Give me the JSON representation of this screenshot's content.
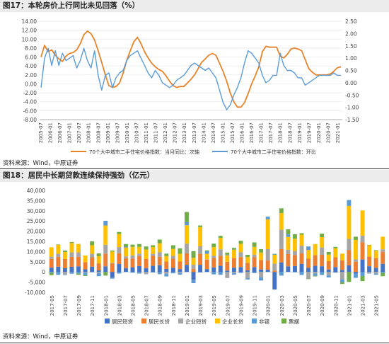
{
  "figure1": {
    "title": "图17：本轮房价上行同比未见回落（%）",
    "source": "资料来源：Wind，中原证券"
  },
  "figure2": {
    "title": "图18：居民中长期贷款连续保持强劲（亿元）",
    "source": "资料来源：Wind，中原证券"
  },
  "chart_data": [
    {
      "type": "line",
      "title": "本轮房价上行同比未见回落（%）",
      "x_labels": [
        "2005-07",
        "2006-01",
        "2006-07",
        "2007-01",
        "2007-07",
        "2008-01",
        "2008-07",
        "2009-01",
        "2009-07",
        "2010-01",
        "2010-07",
        "2011-01",
        "2011-07",
        "2012-01",
        "2012-07",
        "2013-01",
        "2013-07",
        "2014-01",
        "2014-07",
        "2015-01",
        "2015-07",
        "2016-01",
        "2016-07",
        "2017-01",
        "2017-07",
        "2018-01",
        "2018-07",
        "2019-01",
        "2019-07",
        "2020-01",
        "2020-07",
        "2021-01"
      ],
      "y_left": {
        "min": -8,
        "max": 14,
        "step": 2
      },
      "y_right": {
        "min": -1.5,
        "max": 2.5,
        "step": 0.5
      },
      "legend_position": "bottom",
      "series": [
        {
          "name": "70个大中城市二手住宅价格指数：当月同比：次轴",
          "color": "#E8832A",
          "axis": "left",
          "values": [
            6.0,
            8.6,
            7.2,
            7.6,
            6.4,
            5.6,
            5.0,
            6.2,
            6.8,
            7.0,
            7.6,
            9.0,
            11.0,
            11.8,
            11.2,
            9.8,
            7.4,
            4.8,
            2.0,
            -0.4,
            -0.8,
            -0.6,
            0.2,
            2.4,
            5.2,
            7.4,
            9.4,
            10.4,
            9.0,
            7.2,
            5.8,
            4.6,
            3.8,
            3.2,
            2.8,
            1.8,
            0.6,
            -0.4,
            -0.8,
            -0.6,
            -0.6,
            0.2,
            1.0,
            2.0,
            3.4,
            4.8,
            5.6,
            6.4,
            6.8,
            6.4,
            4.6,
            2.8,
            0.6,
            -2.0,
            -4.0,
            -5.2,
            -5.2,
            -4.2,
            -2.2,
            0.0,
            1.8,
            3.8,
            7.2,
            8.4,
            8.2,
            8.2,
            8.2,
            6.2,
            5.8,
            6.6,
            7.8,
            8.0,
            7.8,
            7.4,
            5.4,
            3.4,
            2.6,
            2.0,
            2.0,
            2.0,
            2.0,
            2.2,
            2.8,
            3.6,
            3.8
          ]
        },
        {
          "name": "70个大中城市二手住宅价格指数：环比",
          "color": "#5B9BD5",
          "axis": "right",
          "values": [
            -0.2,
            1.0,
            1.4,
            0.7,
            1.3,
            0.7,
            1.2,
            0.9,
            1.0,
            1.1,
            0.6,
            0.9,
            1.4,
            0.9,
            0.6,
            1.3,
            0.3,
            -0.3,
            0.3,
            0.4,
            -0.2,
            0.2,
            0.4,
            0.5,
            0.9,
            1.1,
            1.2,
            1.3,
            1.0,
            0.7,
            0.4,
            0.2,
            0.5,
            0.3,
            0.0,
            -0.1,
            -0.2,
            -0.1,
            0.1,
            0.2,
            0.3,
            0.5,
            0.7,
            0.8,
            0.7,
            0.6,
            0.5,
            0.6,
            0.4,
            0.2,
            -0.3,
            -0.8,
            -1.1,
            -0.9,
            -0.5,
            -0.2,
            0.2,
            0.8,
            1.3,
            1.2,
            1.0,
            0.8,
            0.3,
            0.0,
            0.1,
            0.3,
            0.3,
            1.2,
            0.7,
            0.5,
            0.5,
            0.4,
            0.2,
            0.2,
            -0.1,
            0.0,
            0.1,
            0.2,
            0.3,
            0.3,
            0.3,
            0.3,
            0.4,
            0.3,
            0.3
          ]
        }
      ]
    },
    {
      "type": "bar",
      "stacked": true,
      "title": "居民中长期贷款连续保持强劲（亿元）",
      "categories": [
        "2017-05",
        "2017-06",
        "2017-07",
        "2017-08",
        "2017-09",
        "2017-10",
        "2017-11",
        "2017-12",
        "2018-01",
        "2018-02",
        "2018-03",
        "2018-04",
        "2018-05",
        "2018-06",
        "2018-07",
        "2018-08",
        "2018-09",
        "2018-10",
        "2018-11",
        "2018-12",
        "2019-01",
        "2019-02",
        "2019-03",
        "2019-04",
        "2019-05",
        "2019-06",
        "2019-07",
        "2019-08",
        "2019-09",
        "2019-10",
        "2019-11",
        "2019-12",
        "2020-01",
        "2020-02",
        "2020-03",
        "2020-04",
        "2020-05",
        "2020-06",
        "2020-07",
        "2020-08",
        "2020-09",
        "2020-10",
        "2020-11",
        "2020-12",
        "2021-01",
        "2021-02",
        "2021-03",
        "2021-04",
        "2021-05",
        "2021-06"
      ],
      "x_labels": [
        "2017-05",
        "2017-07",
        "2017-09",
        "2017-11",
        "2018-01",
        "2018-03",
        "2018-05",
        "2018-07",
        "2018-09",
        "2018-11",
        "2019-01",
        "2019-03",
        "2019-05",
        "2019-07",
        "2019-09",
        "2019-11",
        "2020-01",
        "2020-03",
        "2020-05",
        "2020-07",
        "2020-09",
        "2020-11",
        "2021-01",
        "2021-03",
        "2021-05"
      ],
      "ylim": [
        -10000,
        40000
      ],
      "y_ticks": [
        -10000,
        -5000,
        0,
        5000,
        10000,
        15000,
        20000,
        25000,
        30000,
        35000,
        40000
      ],
      "legend_position": "bottom",
      "series": [
        {
          "name": "居民短贷",
          "color": "#4472C4",
          "values": [
            2100,
            2600,
            1800,
            2500,
            2700,
            1300,
            2600,
            800,
            2700,
            -2800,
            3900,
            1900,
            2300,
            2900,
            1900,
            3000,
            3300,
            1500,
            2000,
            1400,
            3500,
            -3800,
            3500,
            1400,
            2200,
            3000,
            700,
            2100,
            2400,
            800,
            2400,
            1200,
            1100,
            -8600,
            4700,
            2700,
            2900,
            4000,
            2000,
            3000,
            2800,
            1200,
            2400,
            1000,
            3200,
            -900,
            6100,
            2800,
            2000,
            4000
          ]
        },
        {
          "name": "居民长贷",
          "color": "#ED7D31",
          "values": [
            4300,
            4800,
            4600,
            4900,
            4700,
            3500,
            4600,
            3400,
            6300,
            4200,
            5300,
            4800,
            4300,
            4900,
            4500,
            4900,
            4100,
            3600,
            4500,
            3700,
            5600,
            1500,
            5400,
            4600,
            4600,
            4900,
            4300,
            4700,
            4900,
            3700,
            4800,
            4700,
            4500,
            700,
            6500,
            6100,
            5400,
            5100,
            4500,
            5200,
            5600,
            4100,
            4800,
            4700,
            7600,
            5000,
            8400,
            4700,
            4700,
            5900
          ]
        },
        {
          "name": "企业短贷",
          "color": "#A5A5A5",
          "values": [
            1100,
            1500,
            -1300,
            2200,
            2200,
            -300,
            1700,
            -500,
            4300,
            300,
            3000,
            900,
            1500,
            1200,
            -900,
            1000,
            2300,
            -1000,
            1400,
            -500,
            4800,
            2000,
            3700,
            200,
            1100,
            3200,
            -3000,
            -600,
            2400,
            -3000,
            1300,
            -2600,
            5600,
            3400,
            9500,
            2100,
            2000,
            3800,
            -3200,
            -800,
            3600,
            -1700,
            -100,
            -3700,
            5400,
            1200,
            3300,
            -500,
            -800,
            1200
          ]
        },
        {
          "name": "企业长贷",
          "color": "#FFC000",
          "values": [
            4600,
            4400,
            3400,
            4600,
            4100,
            3300,
            4200,
            3500,
            9500,
            5500,
            6400,
            4400,
            4200,
            3300,
            4600,
            3300,
            4400,
            2700,
            3400,
            3800,
            9000,
            3400,
            9400,
            2700,
            4300,
            5600,
            3200,
            4100,
            4100,
            2800,
            3800,
            3600,
            14600,
            4300,
            8200,
            6300,
            6000,
            5400,
            4300,
            5500,
            5100,
            3200,
            4400,
            3300,
            16200,
            9500,
            12400,
            5600,
            3700,
            6200
          ]
        },
        {
          "name": "非银",
          "color": "#5B9BD5",
          "values": [
            -300,
            -1400,
            -200,
            -900,
            -800,
            -1300,
            -200,
            -1600,
            2300,
            -500,
            -800,
            400,
            -400,
            -800,
            -200,
            -300,
            -1100,
            -1200,
            -700,
            -800,
            1500,
            -1700,
            -300,
            1300,
            -1200,
            -1400,
            300,
            -700,
            -500,
            -700,
            -600,
            -1600,
            1300,
            300,
            -1800,
            1200,
            -200,
            -1500,
            1700,
            -1100,
            -1500,
            -1000,
            -300,
            -1300,
            2900,
            -2000,
            -2000,
            -300,
            -600,
            -500
          ]
        },
        {
          "name": "票据",
          "color": "#70AD47",
          "values": [
            -1300,
            200,
            700,
            500,
            -600,
            -400,
            1900,
            1400,
            -1800,
            500,
            1000,
            1300,
            1100,
            1400,
            1500,
            900,
            1800,
            1200,
            1800,
            2700,
            5000,
            3300,
            800,
            400,
            1700,
            1000,
            1000,
            900,
            1500,
            1100,
            2200,
            1700,
            100,
            200,
            2300,
            2500,
            2200,
            700,
            -300,
            -300,
            1700,
            1300,
            700,
            -900,
            -4900,
            1600,
            -2500,
            200,
            300,
            -1600
          ]
        }
      ]
    }
  ]
}
